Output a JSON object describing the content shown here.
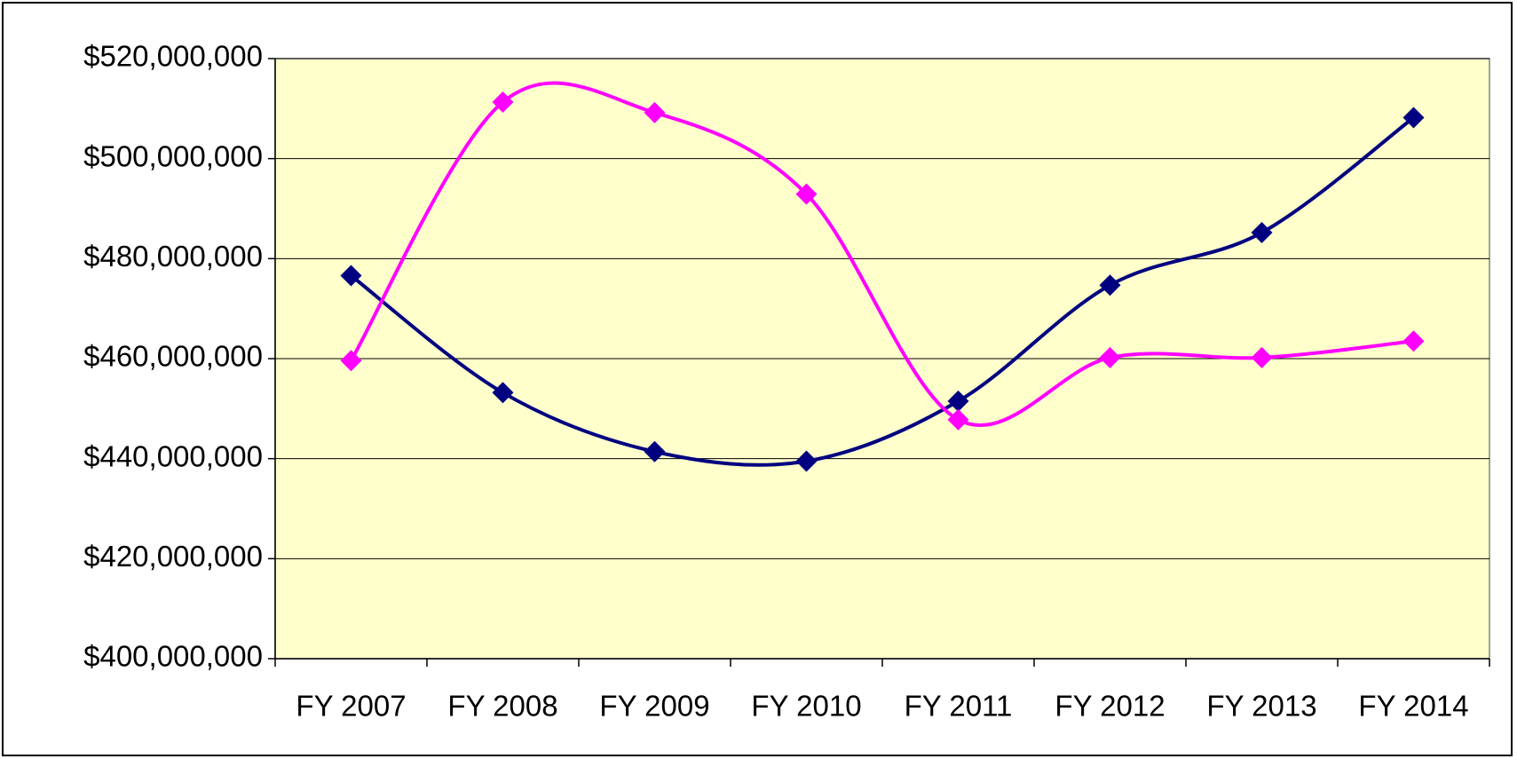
{
  "chart_data": {
    "type": "line",
    "categories": [
      "FY 2007",
      "FY 2008",
      "FY 2009",
      "FY 2010",
      "FY 2011",
      "FY 2012",
      "FY 2013",
      "FY 2014"
    ],
    "series": [
      {
        "color": "#000080",
        "values": [
          476600000,
          453200000,
          441400000,
          439500000,
          451500000,
          474700000,
          485200000,
          508200000
        ]
      },
      {
        "color": "#ff00ff",
        "values": [
          459600000,
          511300000,
          509200000,
          492900000,
          447800000,
          460200000,
          460200000,
          463500000
        ]
      }
    ],
    "ylim": [
      400000000,
      520000000
    ],
    "yticks": [
      {
        "value": 400000000,
        "label": "$400,000,000"
      },
      {
        "value": 420000000,
        "label": "$420,000,000"
      },
      {
        "value": 440000000,
        "label": "$440,000,000"
      },
      {
        "value": 460000000,
        "label": "$460,000,000"
      },
      {
        "value": 480000000,
        "label": "$480,000,000"
      },
      {
        "value": 500000000,
        "label": "$500,000,000"
      },
      {
        "value": 520000000,
        "label": "$520,000,000"
      }
    ],
    "grid": true,
    "plot_background": "#ffffcc",
    "smooth": true
  }
}
